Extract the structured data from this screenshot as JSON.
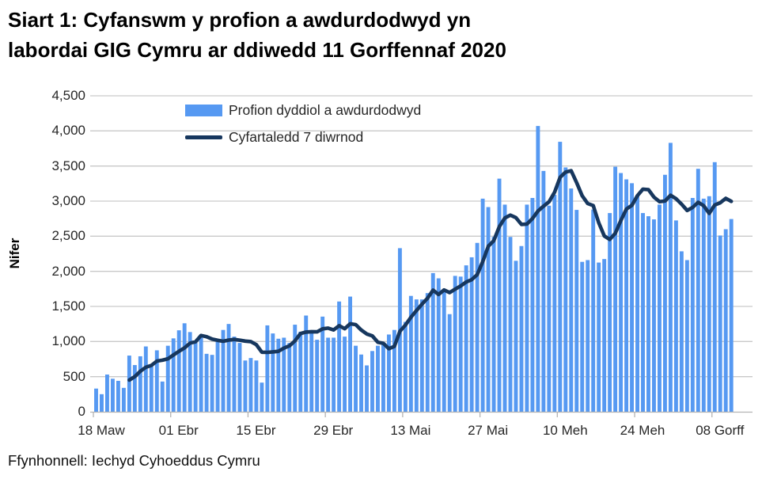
{
  "page": {
    "title_line1": "Siart 1: Cyfanswm y profion a awdurdodwyd yn",
    "title_line2": "labordai GIG Cymru ar ddiwedd 11 Gorffennaf 2020",
    "source": "Ffynhonnell: Iechyd Cyhoeddus Cymru"
  },
  "colors": {
    "bar": "#5699f2",
    "line": "#17375e",
    "grid": "#c9c9c9",
    "axis": "#b3b3b3",
    "text": "#262626"
  },
  "chart_data": {
    "type": "bar",
    "title": "Siart 1: Cyfanswm y profion a awdurdodwyd yn labordai GIG Cymru ar ddiwedd 11 Gorffennaf 2020",
    "xlabel": "",
    "ylabel": "Nifer",
    "ylim": [
      0,
      4500
    ],
    "ytick_step": 500,
    "grid": true,
    "legend_position": "top-inside",
    "x_tick_labels": [
      "18 Maw",
      "01 Ebr",
      "15 Ebr",
      "29 Ebr",
      "13 Mai",
      "27 Mai",
      "10 Meh",
      "24 Meh",
      "08 Gorff"
    ],
    "x_tick_interval_days": 14,
    "date_range": "18 Mawrth 2020 - 11 Gorffennaf 2020",
    "series": [
      {
        "name": "Profion dyddiol a awdurdodwyd",
        "type": "bar",
        "color": "#5699f2",
        "values": [
          330,
          250,
          530,
          470,
          440,
          340,
          800,
          665,
          790,
          930,
          650,
          875,
          430,
          940,
          1045,
          1160,
          1260,
          1135,
          1005,
          1055,
          825,
          810,
          1035,
          1165,
          1250,
          1070,
          980,
          730,
          765,
          730,
          415,
          1230,
          1115,
          1040,
          1055,
          980,
          1240,
          1140,
          1370,
          1155,
          1025,
          1355,
          1055,
          1055,
          1570,
          1070,
          1640,
          940,
          815,
          660,
          865,
          940,
          965,
          1100,
          1165,
          2330,
          1280,
          1650,
          1600,
          1600,
          1690,
          1975,
          1900,
          1730,
          1390,
          1935,
          1925,
          2085,
          2200,
          2405,
          3035,
          2915,
          2490,
          3320,
          2950,
          2490,
          2150,
          2360,
          2950,
          3045,
          4070,
          3430,
          2935,
          3090,
          3845,
          3480,
          3180,
          2875,
          2135,
          2160,
          2880,
          2125,
          2175,
          2830,
          3490,
          3400,
          3310,
          3255,
          3075,
          2830,
          2785,
          2740,
          2950,
          3375,
          3830,
          2725,
          2285,
          2160,
          3045,
          3460,
          3035,
          3070,
          3555,
          2510,
          2600,
          2745
        ]
      },
      {
        "name": "Cyfartaledd 7 diwrnod",
        "type": "line",
        "color": "#17375e",
        "derivation": "trailing 7-day mean of daily bar values"
      }
    ],
    "source_note": "Ffynhonnell: Iechyd Cyhoeddus Cymru"
  }
}
